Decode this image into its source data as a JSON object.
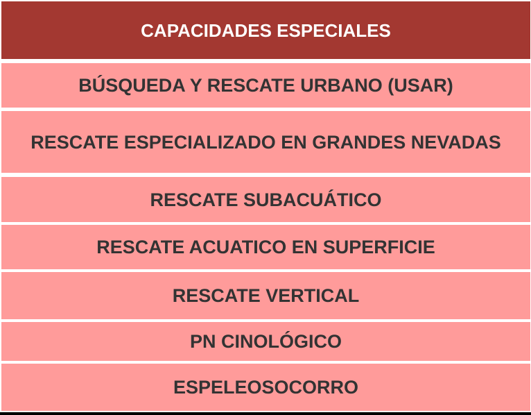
{
  "table": {
    "header": "CAPACIDADES  ESPECIALES",
    "rows": [
      "BÚSQUEDA  Y RESCATE URBANO  (USAR)",
      "RESCATE ESPECIALIZADO  EN GRANDES NEVADAS",
      "RESCATE SUBACUÁTICO",
      "RESCATE ACUATICO  EN SUPERFICIE",
      "RESCATE VERTICAL",
      "PN CINOLÓGICO",
      "ESPELEOSOCORRO"
    ]
  },
  "colors": {
    "header_bg": "#a33831",
    "row_bg": "#ff9b9a",
    "text": "#333333"
  }
}
